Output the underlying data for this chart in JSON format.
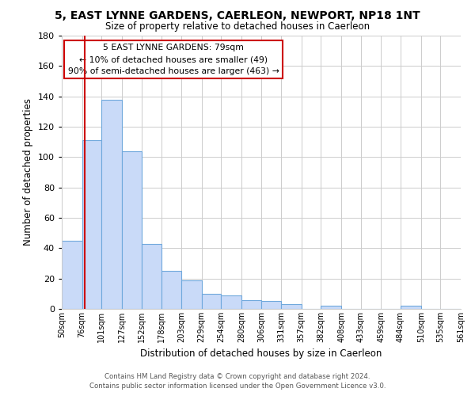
{
  "title": "5, EAST LYNNE GARDENS, CAERLEON, NEWPORT, NP18 1NT",
  "subtitle": "Size of property relative to detached houses in Caerleon",
  "xlabel": "Distribution of detached houses by size in Caerleon",
  "ylabel": "Number of detached properties",
  "bar_values": [
    45,
    111,
    138,
    104,
    43,
    25,
    19,
    10,
    9,
    6,
    5,
    3,
    0,
    2,
    0,
    0,
    0,
    2,
    0,
    0
  ],
  "bin_edges": [
    50,
    76,
    101,
    127,
    152,
    178,
    203,
    229,
    254,
    280,
    306,
    331,
    357,
    382,
    408,
    433,
    459,
    484,
    510,
    535,
    561
  ],
  "bin_labels": [
    "50sqm",
    "76sqm",
    "101sqm",
    "127sqm",
    "152sqm",
    "178sqm",
    "203sqm",
    "229sqm",
    "254sqm",
    "280sqm",
    "306sqm",
    "331sqm",
    "357sqm",
    "382sqm",
    "408sqm",
    "433sqm",
    "459sqm",
    "484sqm",
    "510sqm",
    "535sqm",
    "561sqm"
  ],
  "bar_color": "#c9daf8",
  "bar_edge_color": "#6fa8dc",
  "vline_x": 79,
  "vline_color": "#cc0000",
  "ylim": [
    0,
    180
  ],
  "yticks": [
    0,
    20,
    40,
    60,
    80,
    100,
    120,
    140,
    160,
    180
  ],
  "annotation_title": "5 EAST LYNNE GARDENS: 79sqm",
  "annotation_line1": "← 10% of detached houses are smaller (49)",
  "annotation_line2": "90% of semi-detached houses are larger (463) →",
  "annotation_box_color": "#ffffff",
  "annotation_box_edge": "#cc0000",
  "footer1": "Contains HM Land Registry data © Crown copyright and database right 2024.",
  "footer2": "Contains public sector information licensed under the Open Government Licence v3.0.",
  "background_color": "#ffffff",
  "grid_color": "#cccccc"
}
